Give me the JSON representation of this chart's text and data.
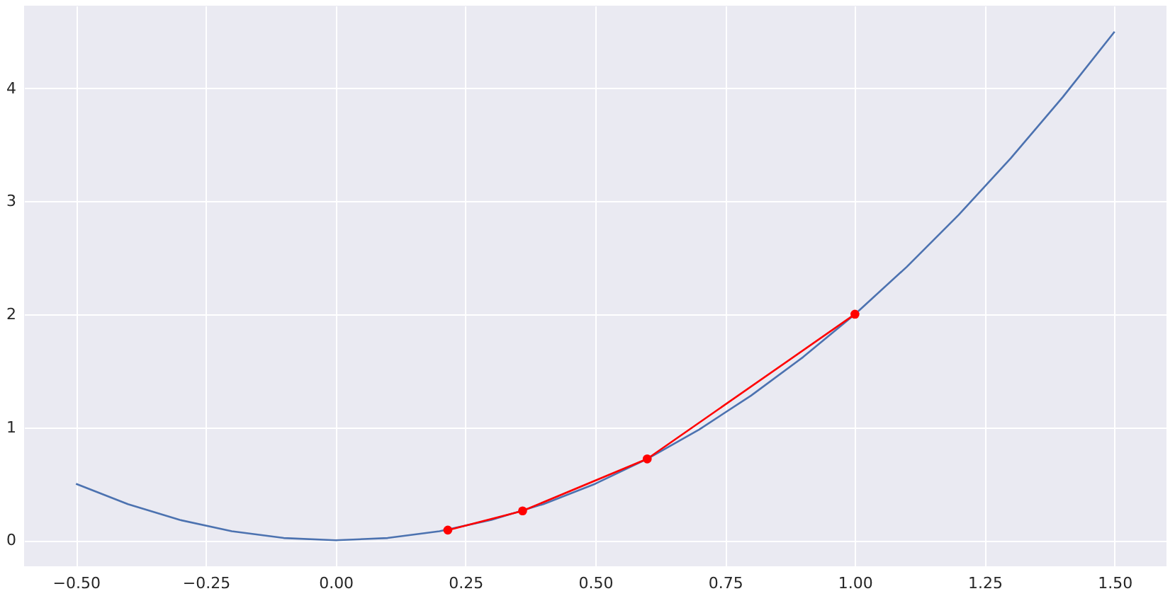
{
  "chart_data": {
    "type": "line",
    "series": [
      {
        "color": "#4c72b0",
        "x": [
          -0.5,
          -0.4,
          -0.3,
          -0.2,
          -0.1,
          0,
          0.1,
          0.2,
          0.3,
          0.4,
          0.5,
          0.6,
          0.7,
          0.8,
          0.9,
          1.0,
          1.1,
          1.2,
          1.3,
          1.4,
          1.5
        ],
        "values": [
          0.5,
          0.32,
          0.18,
          0.08,
          0.02,
          0,
          0.02,
          0.08,
          0.18,
          0.32,
          0.5,
          0.72,
          0.98,
          1.28,
          1.62,
          2.0,
          2.42,
          2.88,
          3.38,
          3.92,
          4.5
        ]
      },
      {
        "color": "#ff0000",
        "marker": "circle",
        "x": [
          1.0,
          0.6,
          0.36,
          0.216
        ],
        "values": [
          2.0,
          0.72,
          0.26,
          0.09
        ]
      }
    ],
    "xlim": [
      -0.6,
      1.6
    ],
    "ylim": [
      -0.23,
      4.73
    ],
    "xticks": [
      {
        "value": -0.5,
        "label": "−0.50"
      },
      {
        "value": -0.25,
        "label": "−0.25"
      },
      {
        "value": 0,
        "label": "0.00"
      },
      {
        "value": 0.25,
        "label": "0.25"
      },
      {
        "value": 0.5,
        "label": "0.50"
      },
      {
        "value": 0.75,
        "label": "0.75"
      },
      {
        "value": 1.0,
        "label": "1.00"
      },
      {
        "value": 1.25,
        "label": "1.25"
      },
      {
        "value": 1.5,
        "label": "1.50"
      }
    ],
    "yticks": [
      0,
      1,
      2,
      3,
      4
    ],
    "grid": true
  }
}
